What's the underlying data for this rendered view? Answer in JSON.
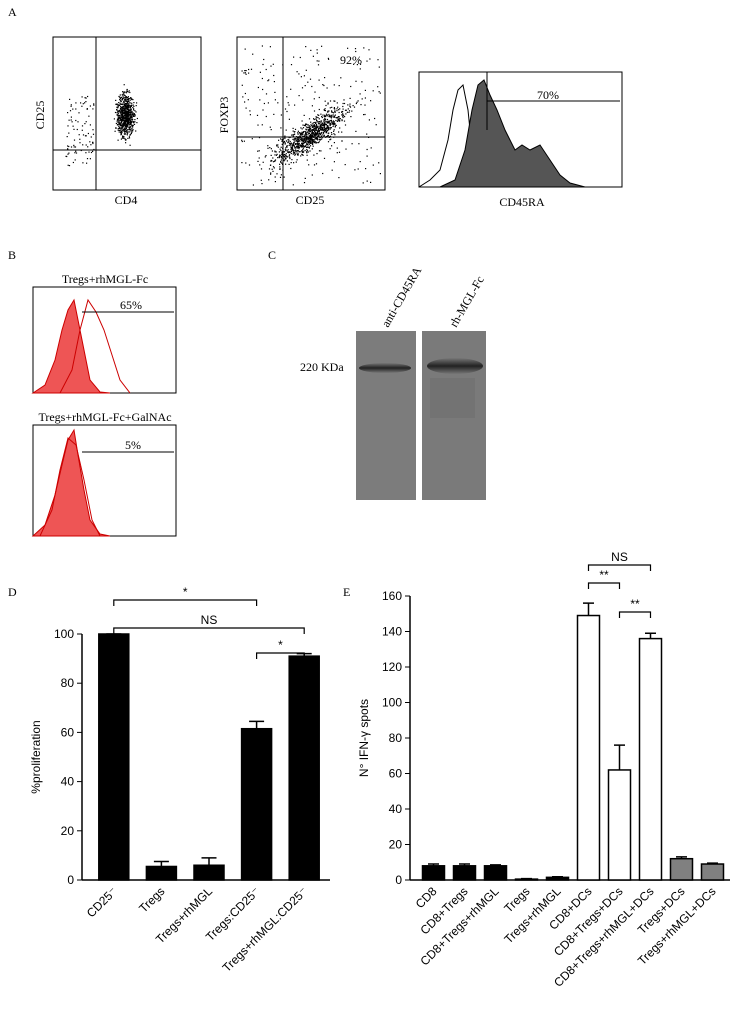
{
  "panels": {
    "a": {
      "letter": "A",
      "plots": [
        {
          "y_label": "CD25",
          "x_label": "CD4"
        },
        {
          "y_label": "FOXP3",
          "x_label": "CD25",
          "gate_label": "92%"
        },
        {
          "x_label": "CD45RA",
          "gate_label": "70%"
        }
      ]
    },
    "b": {
      "letter": "B",
      "plots": [
        {
          "title": "Tregs+rhMGL-Fc",
          "gate_label": "65%"
        },
        {
          "title": "Tregs+rhMGL-Fc+GalNAc",
          "gate_label": "5%"
        }
      ]
    },
    "c": {
      "letter": "C",
      "lanes": [
        "anti-CD45RA",
        "rh-MGL-Fc"
      ],
      "marker": "220 KDa"
    },
    "d": {
      "letter": "D"
    },
    "e": {
      "letter": "E"
    }
  },
  "chart_data": [
    {
      "type": "bar",
      "y_label": "%proliferation",
      "categories": [
        "CD25⁻",
        "Tregs",
        "Tregs+rhMGL",
        "Tregs:CD25⁻",
        "Tregs+rhMGL:CD25⁻"
      ],
      "values": [
        100,
        5.5,
        6,
        61.5,
        91
      ],
      "errors": [
        0,
        2,
        3,
        3,
        1
      ],
      "colors": [
        "#000000",
        "#000000",
        "#000000",
        "#000000",
        "#000000"
      ],
      "ylim": [
        0,
        100
      ],
      "yticks": [
        0,
        20,
        40,
        60,
        80,
        100
      ],
      "significance": [
        {
          "between": [
            "CD25⁻",
            "Tregs:CD25⁻"
          ],
          "label": "*"
        },
        {
          "between": [
            "CD25⁻",
            "Tregs+rhMGL:CD25⁻"
          ],
          "label": "NS"
        },
        {
          "between": [
            "Tregs:CD25⁻",
            "Tregs+rhMGL:CD25⁻"
          ],
          "label": "*"
        }
      ]
    },
    {
      "type": "bar",
      "y_label": "N° IFN-γ spots",
      "categories": [
        "CD8",
        "CD8+Tregs",
        "CD8+Tregs+rhMGL",
        "Tregs",
        "Tregs+rhMGL",
        "CD8+DCs",
        "CD8+Tregs+DCs",
        "CD8+Tregs+rhMGL+DCs",
        "Tregs+DCs",
        "Tregs+rhMGL+DCs"
      ],
      "values": [
        8,
        8,
        8,
        0.5,
        1.5,
        149,
        62,
        136,
        12,
        9
      ],
      "errors": [
        1,
        1,
        0.5,
        0.3,
        0.3,
        7,
        14,
        3,
        1,
        0.5
      ],
      "colors": [
        "#000000",
        "#000000",
        "#000000",
        "#000000",
        "#000000",
        "#ffffff",
        "#ffffff",
        "#ffffff",
        "#808080",
        "#808080"
      ],
      "ylim": [
        0,
        160
      ],
      "yticks": [
        0,
        20,
        40,
        60,
        80,
        100,
        120,
        140,
        160
      ],
      "significance": [
        {
          "between": [
            "CD8+DCs",
            "CD8+Tregs+DCs"
          ],
          "label": "**"
        },
        {
          "between": [
            "CD8+Tregs+DCs",
            "CD8+Tregs+rhMGL+DCs"
          ],
          "label": "**"
        },
        {
          "between": [
            "CD8+DCs",
            "CD8+Tregs+rhMGL+DCs"
          ],
          "label": "NS"
        }
      ]
    }
  ]
}
